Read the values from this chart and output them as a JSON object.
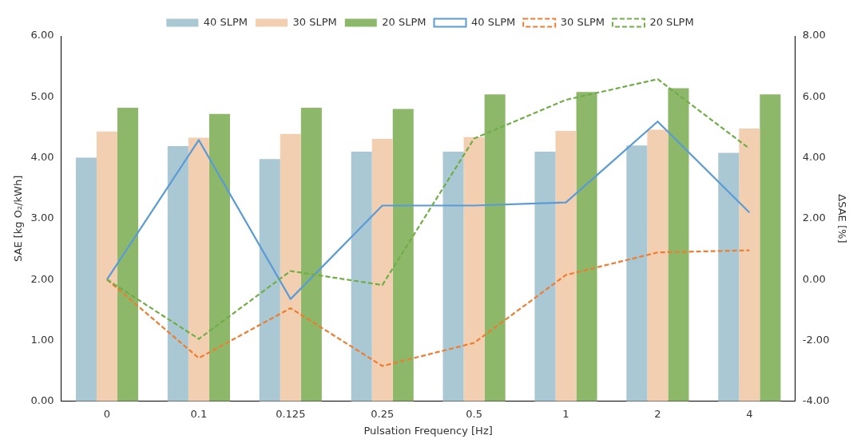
{
  "chart_data": {
    "type": "bar",
    "xlabel": "Pulsation Frequency [Hz]",
    "ylabel": "SAE [kg O₂/kWh]",
    "y2label": "ΔSAE [%]",
    "categories": [
      "0",
      "0.1",
      "0.125",
      "0.25",
      "0.5",
      "1",
      "2",
      "4"
    ],
    "series": [
      {
        "name": "40 SLPM",
        "color": "#a9c8d3",
        "values": [
          4.0,
          4.19,
          3.98,
          4.1,
          4.1,
          4.1,
          4.2,
          4.08
        ]
      },
      {
        "name": "30 SLPM",
        "color": "#f3cfb2",
        "values": [
          4.43,
          4.33,
          4.39,
          4.31,
          4.34,
          4.44,
          4.46,
          4.48
        ]
      },
      {
        "name": "20 SLPM",
        "color": "#8db86a",
        "values": [
          4.82,
          4.72,
          4.82,
          4.8,
          5.04,
          5.08,
          5.14,
          5.04
        ]
      },
      {
        "name": "40 SLPM",
        "type": "line",
        "axis": "y2",
        "color": "#5b9bd5",
        "line_style": "solid",
        "values": [
          0.0,
          4.58,
          -0.64,
          2.43,
          2.43,
          2.53,
          5.19,
          2.2
        ]
      },
      {
        "name": "30 SLPM",
        "type": "line",
        "axis": "y2",
        "color": "#ed7d31",
        "line_style": "dashed",
        "values": [
          0.0,
          -2.58,
          -0.94,
          -2.84,
          -2.08,
          0.15,
          0.89,
          0.96
        ]
      },
      {
        "name": "20 SLPM",
        "type": "line",
        "axis": "y2",
        "color": "#70ad47",
        "line_style": "dashed",
        "values": [
          0.0,
          -1.95,
          0.28,
          -0.18,
          4.63,
          5.9,
          6.58,
          4.3
        ]
      }
    ],
    "ylim": [
      0,
      6
    ],
    "yticks": [
      {
        "value": 0,
        "label": "0.00"
      },
      {
        "value": 1,
        "label": "1.00"
      },
      {
        "value": 2,
        "label": "2.00"
      },
      {
        "value": 3,
        "label": "3.00"
      },
      {
        "value": 4,
        "label": "4.00"
      },
      {
        "value": 5,
        "label": "5.00"
      },
      {
        "value": 6,
        "label": "6.00"
      }
    ],
    "y2lim": [
      -4,
      8
    ],
    "y2ticks": [
      {
        "value": -4,
        "label": "-4.00"
      },
      {
        "value": -2,
        "label": "-2.00"
      },
      {
        "value": 0,
        "label": "0.00"
      },
      {
        "value": 2,
        "label": "2.00"
      },
      {
        "value": 4,
        "label": "4.00"
      },
      {
        "value": 6,
        "label": "6.00"
      },
      {
        "value": 8,
        "label": "8.00"
      }
    ],
    "grid": false,
    "legend": "top",
    "marker": "none"
  }
}
